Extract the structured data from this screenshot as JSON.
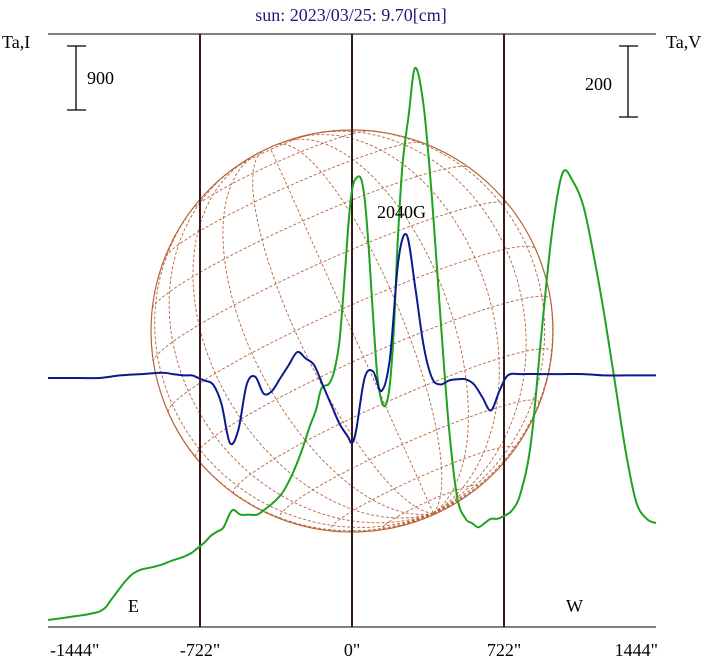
{
  "chart_data": {
    "type": "line",
    "title": "sun: 2023/03/25: 9.70[cm]",
    "left_axis_label": "Ta,I",
    "right_axis_label": "Ta,V",
    "left_scale_bar": "900",
    "right_scale_bar": "200",
    "annotation": "2040G",
    "xticks": [
      {
        "value": -1444,
        "label": "-1444\""
      },
      {
        "value": -722,
        "label": "-722\""
      },
      {
        "value": 0,
        "label": "0\""
      },
      {
        "value": 722,
        "label": "722\""
      },
      {
        "value": 1444,
        "label": "1444\""
      }
    ],
    "xlim": [
      -1444,
      1444
    ],
    "vertical_lines": [
      {
        "x": -722,
        "label": "E"
      },
      {
        "x": 0,
        "label": ""
      },
      {
        "x": 722,
        "label": "W"
      }
    ],
    "colors": {
      "intensity": "#1fa21f",
      "polarization": "#0a1a8c",
      "grid_vertical": "#3a1a1a",
      "solar_disk": "#b8643a",
      "title": "#1a1a7a"
    },
    "series": [
      {
        "key": "intensity",
        "x": [
          -1444,
          -1300,
          -1250,
          -1200,
          -1170,
          -1150,
          -1120,
          -1080,
          -1040,
          -1000,
          -960,
          -900,
          -860,
          -800,
          -760,
          -740,
          -700,
          -670,
          -640,
          -610,
          -570,
          -530,
          -490,
          -450,
          -410,
          -380,
          -350,
          -320,
          -280,
          -240,
          -200,
          -170,
          -145,
          -110,
          -85,
          -60,
          -40,
          -20,
          -5,
          10,
          40,
          60,
          80,
          100,
          120,
          140,
          160,
          180,
          200,
          215,
          240,
          270,
          300,
          340,
          380,
          420,
          460,
          500,
          540,
          570,
          600,
          630,
          660,
          690,
          720,
          760,
          800,
          850,
          900,
          950,
          1000,
          1050,
          1100,
          1150,
          1200,
          1250,
          1300,
          1350,
          1400,
          1444
        ],
        "y": [
          0.0,
          0.05,
          0.07,
          0.1,
          0.15,
          0.22,
          0.32,
          0.45,
          0.55,
          0.6,
          0.62,
          0.66,
          0.7,
          0.75,
          0.8,
          0.84,
          0.92,
          1.0,
          1.05,
          1.1,
          1.3,
          1.25,
          1.25,
          1.25,
          1.32,
          1.38,
          1.45,
          1.55,
          1.75,
          2.0,
          2.3,
          2.5,
          2.75,
          2.8,
          2.95,
          3.3,
          3.9,
          4.6,
          5.0,
          5.2,
          5.25,
          5.0,
          4.4,
          3.6,
          2.9,
          2.6,
          2.55,
          2.8,
          3.5,
          4.4,
          5.4,
          6.0,
          6.55,
          6.1,
          5.0,
          3.6,
          2.3,
          1.45,
          1.2,
          1.15,
          1.1,
          1.15,
          1.2,
          1.2,
          1.23,
          1.3,
          1.5,
          2.1,
          3.4,
          4.6,
          5.3,
          5.2,
          4.9,
          4.3,
          3.6,
          2.8,
          2.0,
          1.4,
          1.2,
          1.15
        ]
      },
      {
        "key": "polarization",
        "x": [
          -1444,
          -1300,
          -1200,
          -1100,
          -1000,
          -900,
          -850,
          -800,
          -760,
          -730,
          -700,
          -660,
          -620,
          -580,
          -540,
          -500,
          -460,
          -420,
          -380,
          -340,
          -300,
          -260,
          -220,
          -180,
          -140,
          -100,
          -60,
          -20,
          0,
          20,
          60,
          100,
          140,
          180,
          220,
          260,
          300,
          340,
          380,
          420,
          460,
          500,
          540,
          580,
          620,
          660,
          700,
          740,
          800,
          900,
          1000,
          1100,
          1200,
          1300,
          1444
        ],
        "y": [
          0,
          0,
          0,
          0.02,
          0.03,
          0.04,
          0.03,
          0.02,
          0.02,
          0.0,
          -0.02,
          -0.05,
          -0.2,
          -0.5,
          -0.4,
          -0.05,
          0.01,
          -0.12,
          -0.1,
          0.0,
          0.1,
          0.2,
          0.15,
          0.1,
          -0.05,
          -0.2,
          -0.35,
          -0.45,
          -0.5,
          -0.4,
          0.0,
          0.05,
          -0.1,
          0.15,
          0.9,
          1.1,
          0.7,
          0.25,
          0.0,
          -0.05,
          -0.02,
          -0.01,
          -0.01,
          -0.05,
          -0.15,
          -0.25,
          -0.1,
          0.02,
          0.03,
          0.03,
          0.03,
          0.03,
          0.02,
          0.02,
          0.02
        ]
      }
    ]
  }
}
